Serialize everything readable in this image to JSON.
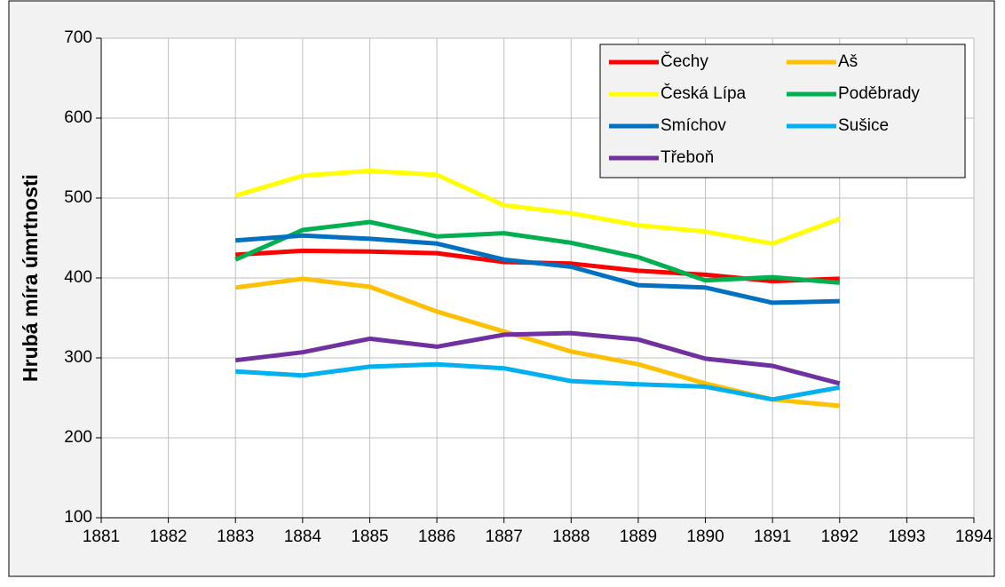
{
  "chart_data": {
    "type": "line",
    "ylabel": "Hrubá míra úmrtnosti",
    "x": [
      1883,
      1884,
      1885,
      1886,
      1887,
      1888,
      1889,
      1890,
      1891,
      1892
    ],
    "xlim": [
      1881,
      1894
    ],
    "xticks": [
      1881,
      1882,
      1883,
      1884,
      1885,
      1886,
      1887,
      1888,
      1889,
      1890,
      1891,
      1892,
      1893,
      1894
    ],
    "ylim": [
      100,
      700
    ],
    "yticks": [
      100,
      200,
      300,
      400,
      500,
      600,
      700
    ],
    "grid": true,
    "legend": "upper right",
    "series": [
      {
        "name": "Čechy",
        "color": "#ff0000",
        "values": [
          429,
          434,
          433,
          431,
          420,
          418,
          409,
          404,
          396,
          399
        ]
      },
      {
        "name": "Aš",
        "color": "#ffc000",
        "values": [
          388,
          399,
          389,
          358,
          333,
          308,
          292,
          268,
          248,
          240
        ]
      },
      {
        "name": "Česká Lípa",
        "color": "#ffff00",
        "values": [
          503,
          528,
          534,
          529,
          491,
          481,
          466,
          458,
          443,
          474
        ]
      },
      {
        "name": "Poděbrady",
        "color": "#00b050",
        "values": [
          423,
          460,
          470,
          452,
          456,
          444,
          426,
          397,
          401,
          394
        ]
      },
      {
        "name": "Smíchov",
        "color": "#0070c0",
        "values": [
          447,
          453,
          449,
          443,
          423,
          414,
          391,
          388,
          369,
          371
        ]
      },
      {
        "name": "Sušice",
        "color": "#00b0f0",
        "values": [
          283,
          278,
          289,
          292,
          287,
          271,
          267,
          264,
          248,
          263
        ]
      },
      {
        "name": "Třeboň",
        "color": "#7030a0",
        "values": [
          297,
          307,
          324,
          314,
          329,
          331,
          323,
          299,
          290,
          268
        ]
      }
    ]
  }
}
